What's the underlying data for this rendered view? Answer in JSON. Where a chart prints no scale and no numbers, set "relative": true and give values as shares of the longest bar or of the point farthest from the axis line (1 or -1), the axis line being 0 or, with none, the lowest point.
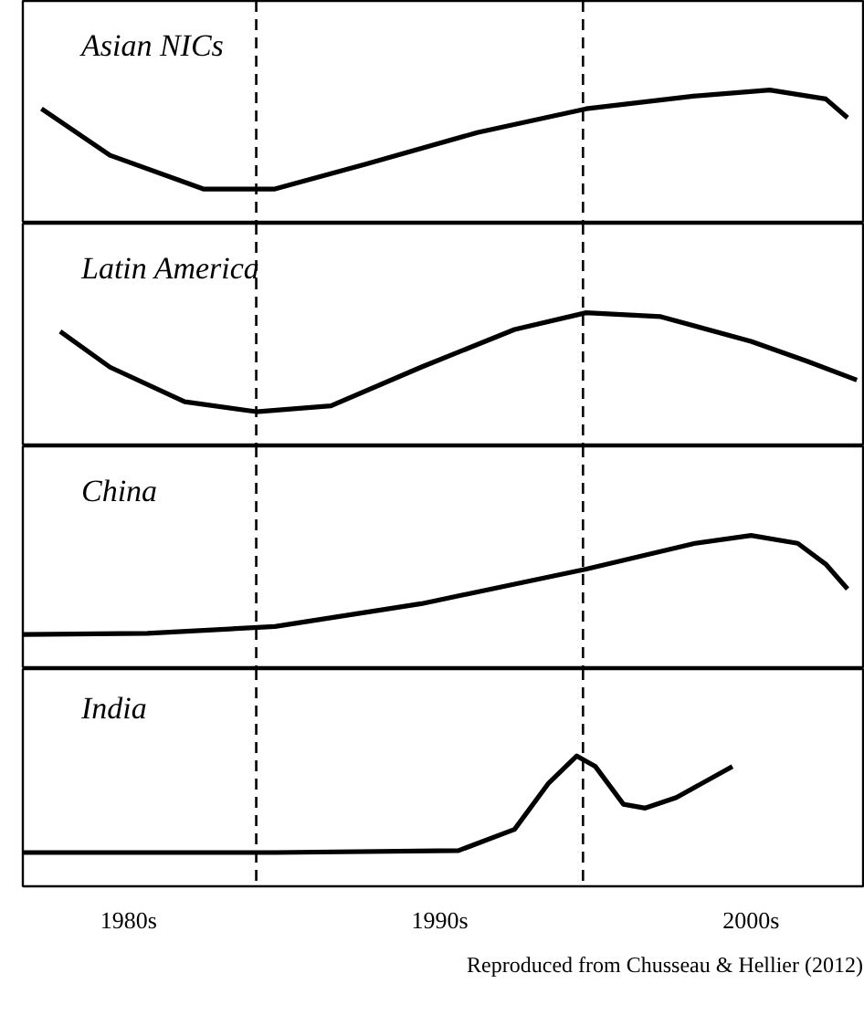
{
  "chart_data": [
    {
      "type": "line",
      "title": "Asian NICs",
      "relative": true,
      "xlim": [
        1976.6,
        2003.6
      ],
      "tick_labels": false,
      "line_style": "solid",
      "series": [
        {
          "color": "#000000",
          "x": [
            1977.2,
            1979.4,
            1982.4,
            1984.7,
            1987.6,
            1991.2,
            1994.7,
            1998.2,
            2000.6,
            2002.4,
            2003.1
          ],
          "values": [
            0.81,
            0.34,
            0,
            0,
            0.25,
            0.57,
            0.81,
            0.94,
            1,
            0.91,
            0.72
          ]
        }
      ],
      "ref_lines": [
        {
          "axis": "x",
          "value": 1984.1,
          "line_style": "dashed",
          "color": "#000000"
        },
        {
          "axis": "x",
          "value": 1994.6,
          "line_style": "dashed",
          "color": "#000000"
        }
      ]
    },
    {
      "type": "line",
      "title": "Latin America",
      "relative": true,
      "xlim": [
        1976.6,
        2003.6
      ],
      "tick_labels": false,
      "line_style": "solid",
      "series": [
        {
          "color": "#000000",
          "x": [
            1977.8,
            1979.4,
            1981.8,
            1984.1,
            1986.5,
            1989.4,
            1992.4,
            1994.7,
            1997.1,
            2000,
            2001.8,
            2003.4
          ],
          "values": [
            0.81,
            0.45,
            0.1,
            0,
            0.06,
            0.45,
            0.83,
            1,
            0.96,
            0.71,
            0.51,
            0.32
          ]
        }
      ],
      "ref_lines": [
        {
          "axis": "x",
          "value": 1984.1,
          "line_style": "dashed",
          "color": "#000000"
        },
        {
          "axis": "x",
          "value": 1994.6,
          "line_style": "dashed",
          "color": "#000000"
        }
      ]
    },
    {
      "type": "line",
      "title": "China",
      "relative": true,
      "xlim": [
        1976.6,
        2003.6
      ],
      "tick_labels": false,
      "line_style": "solid",
      "series": [
        {
          "color": "#000000",
          "x": [
            1976.6,
            1980.6,
            1984.7,
            1989.4,
            1994.7,
            1998.2,
            2000,
            2001.5,
            2002.4,
            2003.1
          ],
          "values": [
            0,
            0.01,
            0.08,
            0.31,
            0.66,
            0.92,
            1,
            0.92,
            0.71,
            0.46
          ]
        }
      ],
      "ref_lines": [
        {
          "axis": "x",
          "value": 1984.1,
          "line_style": "dashed",
          "color": "#000000"
        },
        {
          "axis": "x",
          "value": 1994.6,
          "line_style": "dashed",
          "color": "#000000"
        }
      ]
    },
    {
      "type": "line",
      "title": "India",
      "relative": true,
      "xlim": [
        1976.6,
        2003.6
      ],
      "tick_labels": "x",
      "line_style": "solid",
      "xticks": [
        {
          "value": 1980,
          "label": "1980s"
        },
        {
          "value": 1990,
          "label": "1990s"
        },
        {
          "value": 2000,
          "label": "2000s"
        }
      ],
      "series": [
        {
          "color": "#000000",
          "x": [
            1976.6,
            1984.7,
            1990.6,
            1992.4,
            1993.5,
            1994.4,
            1995,
            1995.9,
            1996.6,
            1997.6,
            1999.4
          ],
          "values": [
            0,
            0,
            0.02,
            0.24,
            0.72,
            1,
            0.89,
            0.5,
            0.46,
            0.57,
            0.89
          ]
        }
      ],
      "ref_lines": [
        {
          "axis": "x",
          "value": 1984.1,
          "line_style": "dashed",
          "color": "#000000"
        },
        {
          "axis": "x",
          "value": 1994.6,
          "line_style": "dashed",
          "color": "#000000"
        }
      ],
      "annotations": [
        "Reproduced from Chusseau & Hellier (2012)"
      ]
    }
  ]
}
